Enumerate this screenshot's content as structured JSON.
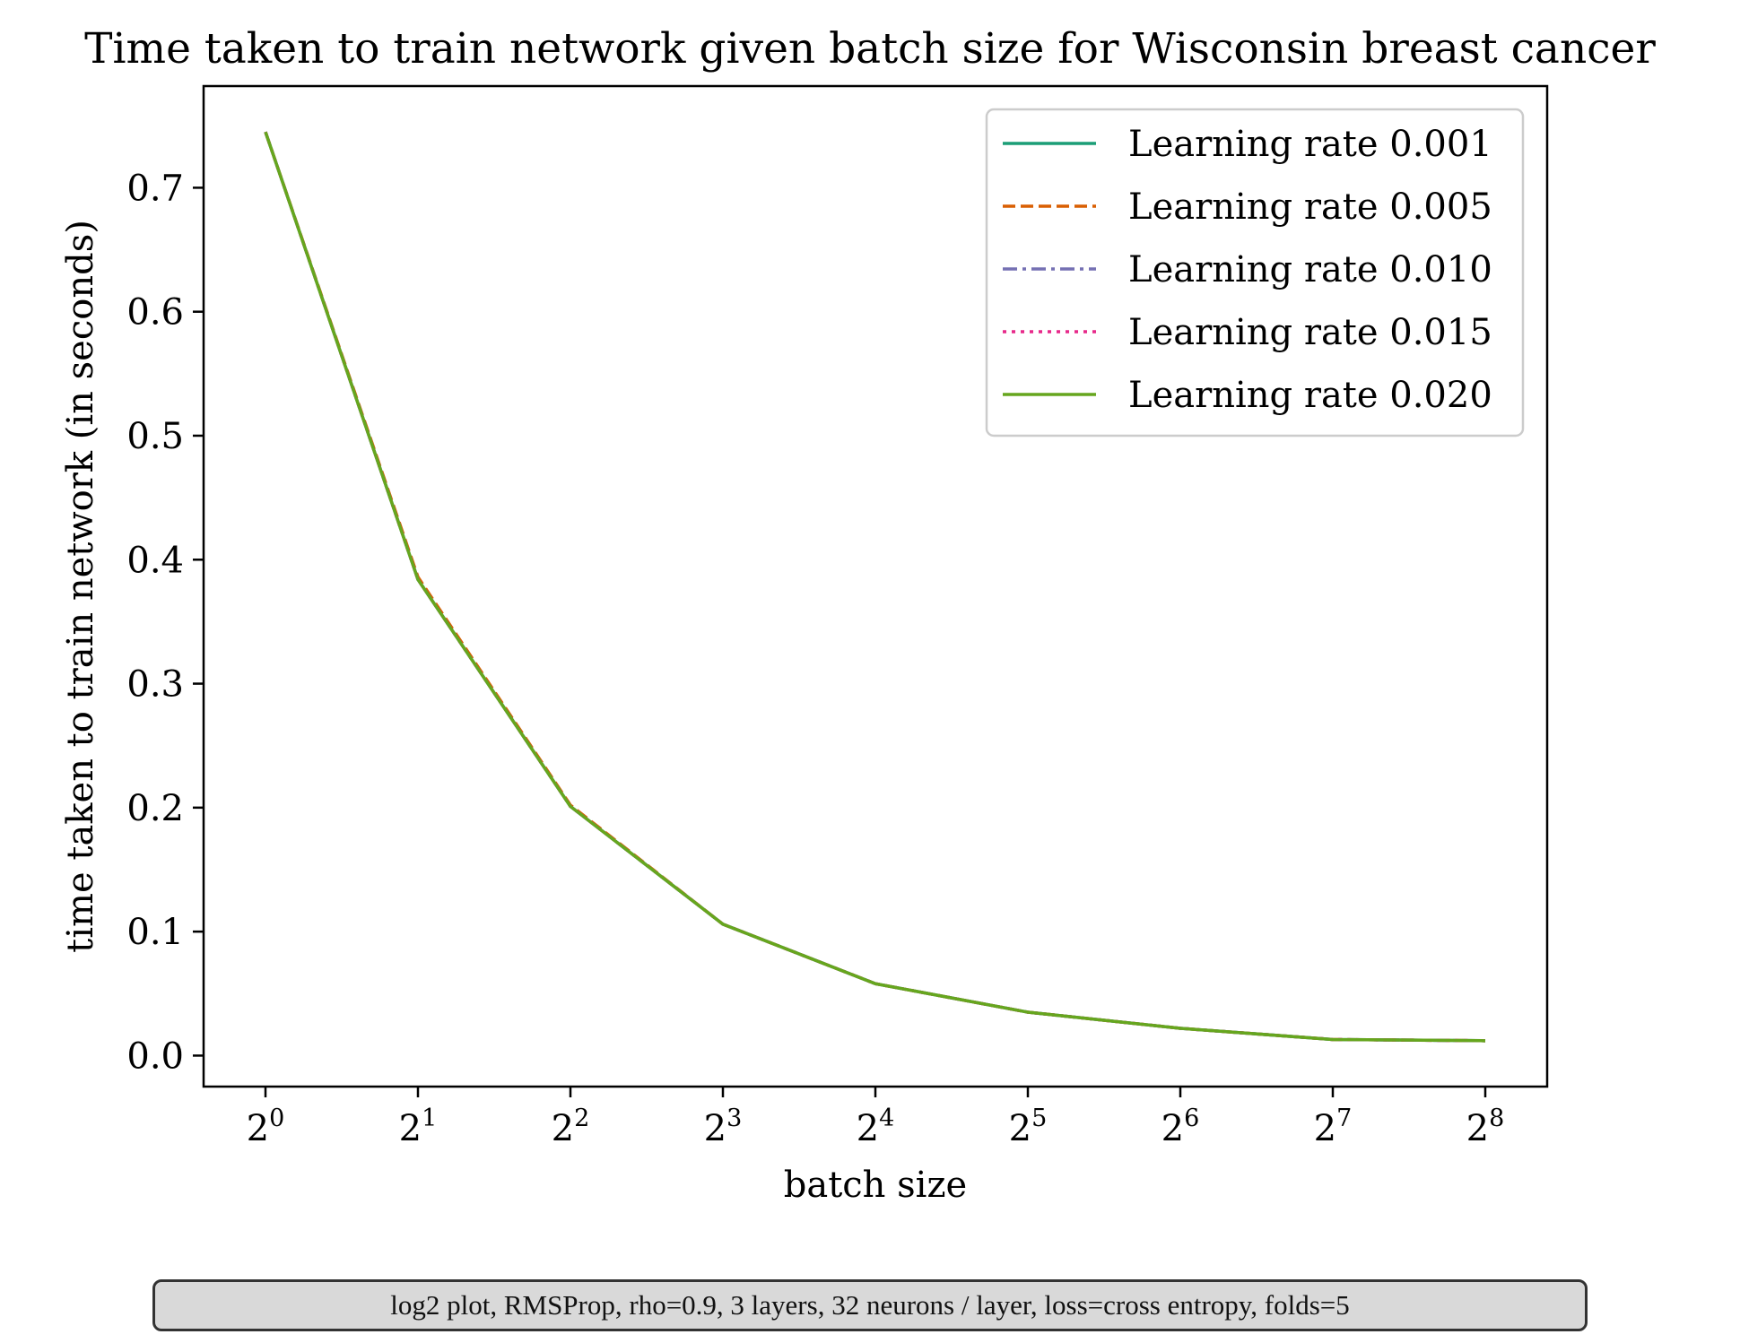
{
  "chart_data": {
    "type": "line",
    "title": "Time taken to train network given batch size for Wisconsin breast cancer",
    "xlabel": "batch size",
    "ylabel": "time taken to train network (in seconds)",
    "x_scale": "log2",
    "x": [
      1,
      2,
      4,
      8,
      16,
      32,
      64,
      128,
      256
    ],
    "x_tick_labels": [
      {
        "base": "2",
        "exp": "0"
      },
      {
        "base": "2",
        "exp": "1"
      },
      {
        "base": "2",
        "exp": "2"
      },
      {
        "base": "2",
        "exp": "3"
      },
      {
        "base": "2",
        "exp": "4"
      },
      {
        "base": "2",
        "exp": "5"
      },
      {
        "base": "2",
        "exp": "6"
      },
      {
        "base": "2",
        "exp": "7"
      },
      {
        "base": "2",
        "exp": "8"
      }
    ],
    "y_ticks": [
      0.0,
      0.1,
      0.2,
      0.3,
      0.4,
      0.5,
      0.6,
      0.7
    ],
    "y_tick_labels": [
      "0.0",
      "0.1",
      "0.2",
      "0.3",
      "0.4",
      "0.5",
      "0.6",
      "0.7"
    ],
    "ylim": [
      -0.025,
      0.782
    ],
    "grid": false,
    "legend_position": "upper-right",
    "series": [
      {
        "name": "Learning rate 0.001",
        "color": "#1b9e77",
        "style": "solid",
        "values": [
          0.745,
          0.384,
          0.201,
          0.106,
          0.058,
          0.035,
          0.022,
          0.013,
          0.012
        ]
      },
      {
        "name": "Learning rate 0.005",
        "color": "#d95f02",
        "style": "dashed",
        "values": [
          0.745,
          0.386,
          0.202,
          0.106,
          0.058,
          0.035,
          0.022,
          0.013,
          0.012
        ]
      },
      {
        "name": "Learning rate 0.010",
        "color": "#7570b3",
        "style": "dashdot",
        "values": [
          0.745,
          0.384,
          0.201,
          0.106,
          0.058,
          0.035,
          0.022,
          0.013,
          0.012
        ]
      },
      {
        "name": "Learning rate 0.015",
        "color": "#e7298a",
        "style": "dotted",
        "values": [
          0.745,
          0.384,
          0.201,
          0.106,
          0.058,
          0.035,
          0.022,
          0.013,
          0.012
        ]
      },
      {
        "name": "Learning rate 0.020",
        "color": "#66a61e",
        "style": "solid",
        "values": [
          0.745,
          0.384,
          0.201,
          0.106,
          0.058,
          0.035,
          0.022,
          0.013,
          0.012
        ]
      }
    ],
    "annotation": "log2 plot, RMSProp, rho=0.9, 3 layers, 32 neurons / layer, loss=cross entropy, folds=5"
  }
}
